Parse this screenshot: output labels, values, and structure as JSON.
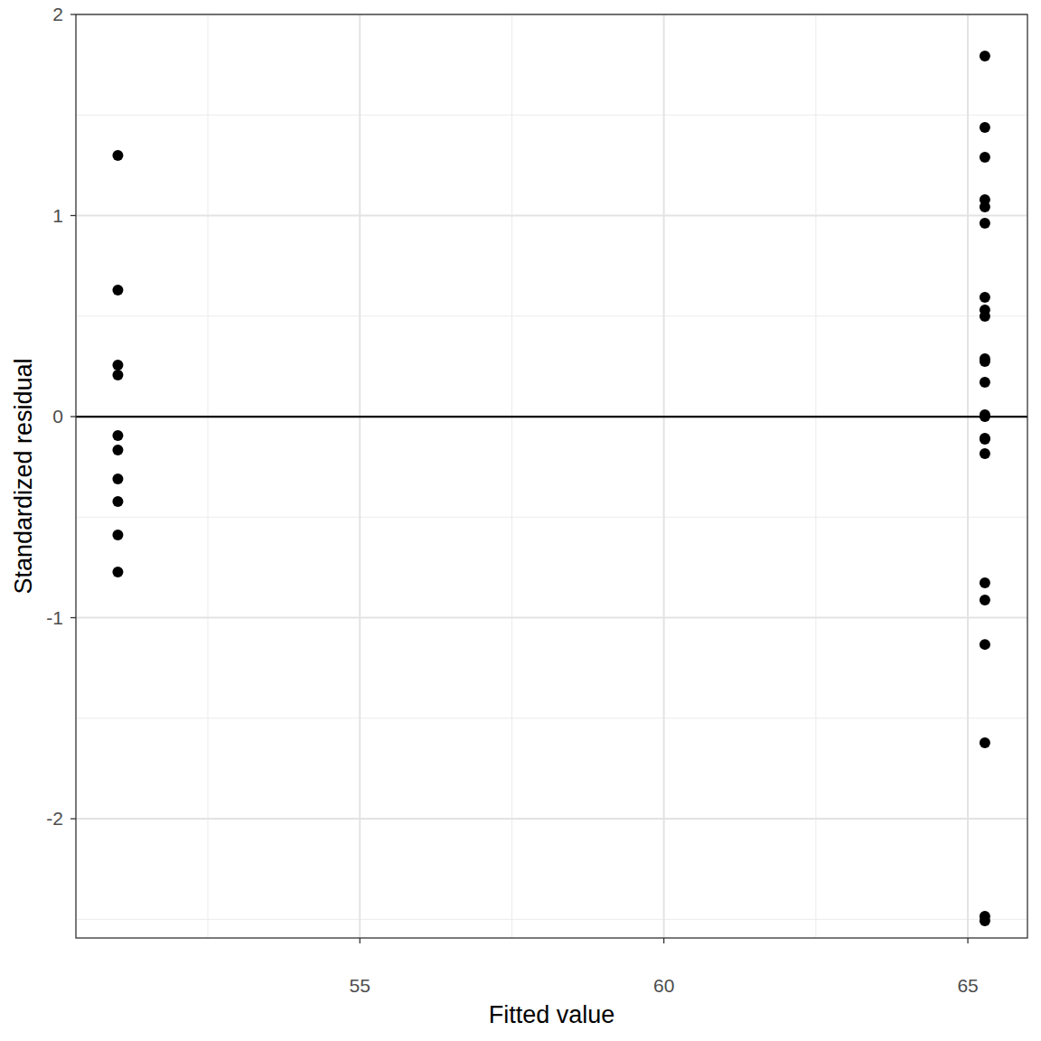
{
  "chart_data": {
    "type": "scatter",
    "x_label": "Fitted value",
    "y_label": "Standardized residual",
    "x": [
      51.02,
      51.02,
      51.02,
      51.02,
      51.02,
      51.02,
      51.02,
      51.02,
      51.02,
      51.02,
      65.28,
      65.28,
      65.28,
      65.28,
      65.28,
      65.28,
      65.28,
      65.28,
      65.28,
      65.28,
      65.28,
      65.28,
      65.28,
      65.28,
      65.28,
      65.28,
      65.28,
      65.28,
      65.28,
      65.28,
      65.28,
      65.28,
      65.28
    ],
    "values": [
      1.299,
      0.629,
      0.256,
      0.207,
      -0.094,
      -0.166,
      -0.31,
      -0.422,
      -0.589,
      -0.773,
      1.793,
      1.438,
      1.29,
      1.079,
      1.043,
      0.962,
      0.593,
      0.53,
      0.499,
      0.288,
      0.274,
      0.171,
      0.009,
      0.0,
      -0.108,
      -0.112,
      -0.184,
      -0.827,
      -0.912,
      -1.133,
      -1.622,
      -2.485,
      -2.508
    ],
    "color": "#000000",
    "marker": "circle",
    "reference_line": 0,
    "xlim": [
      50.33,
      65.98
    ],
    "xticks": [
      55,
      60,
      65
    ],
    "ylim": [
      -2.593,
      2.0
    ],
    "yticks": [
      -2,
      -1,
      0,
      1,
      2
    ],
    "grid": true
  }
}
